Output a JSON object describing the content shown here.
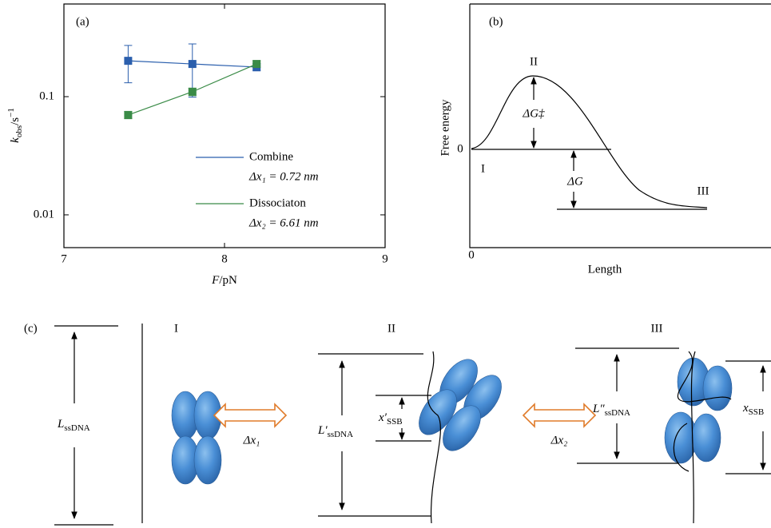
{
  "chart_data": {
    "type": "line",
    "panel": "(a)",
    "x_label": {
      "symbol": "F",
      "unit": "/pN"
    },
    "y_label": {
      "symbol": "k",
      "sub": "obs",
      "unit": "/s",
      "sup": "−1"
    },
    "x": [
      7.4,
      7.8,
      8.2
    ],
    "series": [
      {
        "name": "Combine",
        "annotation": "Δx₁ = 0.72 nm",
        "color": "#2b5fad",
        "values": [
          0.201,
          0.189,
          0.178
        ],
        "errors": [
          0.07,
          0.09,
          0.013
        ]
      },
      {
        "name": "Dissociaton",
        "annotation": "Δx₂ = 6.61 nm",
        "color": "#3a8b47",
        "values": [
          0.07,
          0.11,
          0.189
        ],
        "errors": [
          0.005,
          0.008,
          0.012
        ]
      }
    ],
    "xlim": [
      7,
      9
    ],
    "xticks": [
      7,
      8,
      9
    ],
    "ylim": [
      0.00528,
      0.608
    ],
    "yticks": [
      0.01,
      0.1
    ],
    "log_y": true,
    "legend": "lower right"
  },
  "panel_b": {
    "panel": "(b)",
    "y_label": "Free energy",
    "x_label": "Length",
    "y_zero": "0",
    "x_zero": "0",
    "states": [
      "I",
      "II",
      "III"
    ],
    "barrier": "ΔG‡",
    "delta": "ΔG"
  },
  "panel_c": {
    "panel": "(c)",
    "states": [
      "I",
      "II",
      "III"
    ],
    "length_1": {
      "main": "L",
      "sub": "ssDNA"
    },
    "length_2": {
      "main": "L′",
      "sub": "ssDNA"
    },
    "length_3": {
      "main": "L″",
      "sub": "ssDNA"
    },
    "ssb_2": {
      "main": "x′",
      "sub": "SSB"
    },
    "ssb_3": {
      "main": "x",
      "sub": "SSB"
    },
    "step_1": "Δx₁",
    "step_2": "Δx₂"
  }
}
